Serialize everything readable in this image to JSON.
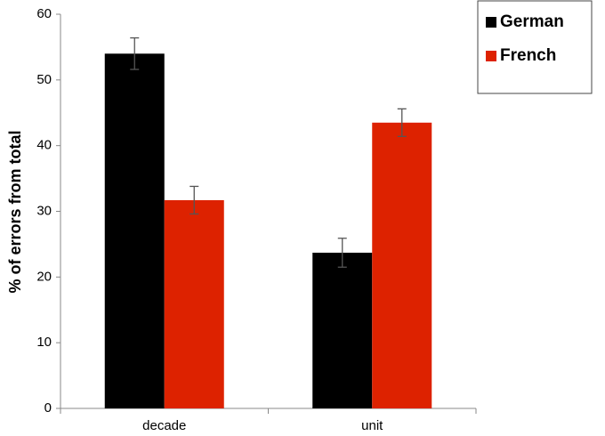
{
  "chart_data": {
    "type": "bar",
    "y_label": "% of errors from total",
    "categories": [
      "decade",
      "unit"
    ],
    "series": [
      {
        "name": "German",
        "color": "#000000",
        "values": [
          54,
          23.7
        ],
        "errors": [
          2.4,
          2.2
        ]
      },
      {
        "name": "French",
        "color": "#dd2200",
        "values": [
          31.7,
          43.5
        ],
        "errors": [
          2.1,
          2.1
        ]
      }
    ],
    "ylim": [
      0,
      60
    ],
    "yticks": [
      0,
      10,
      20,
      30,
      40,
      50,
      60
    ],
    "grid": false,
    "legend": "top-right"
  }
}
